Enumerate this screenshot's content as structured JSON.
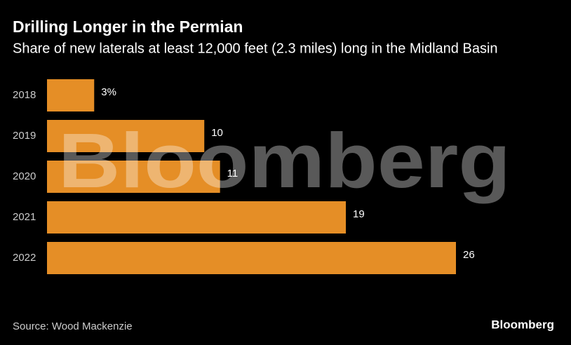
{
  "chart_data": {
    "type": "bar",
    "orientation": "horizontal",
    "title": "Drilling Longer in the Permian",
    "subtitle": "Share of new laterals at least 12,000 feet (2.3 miles) long in the Midland Basin",
    "categories": [
      "2018",
      "2019",
      "2020",
      "2021",
      "2022"
    ],
    "values": [
      3,
      10,
      11,
      19,
      26
    ],
    "value_labels": [
      "3%",
      "10",
      "11",
      "19",
      "26"
    ],
    "color": "#e58e26",
    "source": "Source: Wood Mackenzie",
    "watermark": "Bloomberg",
    "logo": "Bloomberg"
  }
}
